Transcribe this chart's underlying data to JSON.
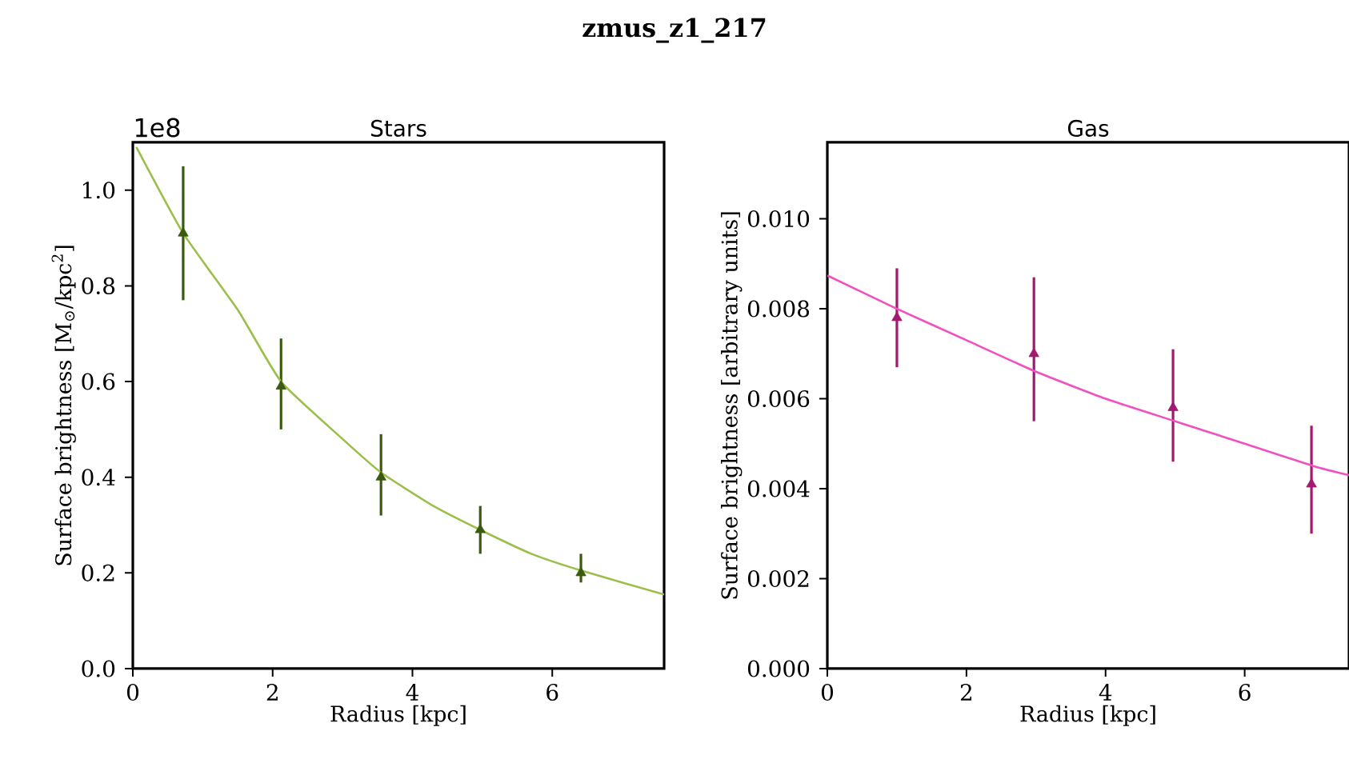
{
  "chart_data": [
    {
      "type": "scatter",
      "title": "Stars",
      "xlabel": "Radius [kpc]",
      "ylabel": "Surface brightness [M$_{⊙}$/kpc$^{2}$]",
      "annotations": [
        "zmus_z1_217",
        "1e8"
      ],
      "xlim": [
        0,
        7.6
      ],
      "ylim": [
        0,
        1.1
      ],
      "xticks": [
        0,
        2,
        4,
        6
      ],
      "yticks": [
        {
          "value": 0,
          "label": "0.0"
        },
        0.2,
        0.4,
        0.6,
        0.8,
        {
          "value": 1,
          "label": "1.0"
        }
      ],
      "series": [
        {
          "marker": "triangle",
          "color": "#3b5a0f",
          "x": [
            0.72,
            2.12,
            3.55,
            4.97,
            6.41
          ],
          "values": [
            0.91,
            0.59,
            0.4,
            0.29,
            0.2
          ],
          "errors": [
            [
              0.77,
              1.05
            ],
            [
              0.5,
              0.69
            ],
            [
              0.32,
              0.49
            ],
            [
              0.24,
              0.34
            ],
            [
              0.18,
              0.24
            ]
          ]
        },
        {
          "type": "line",
          "color": "#9bbf4a",
          "x": [
            0.05,
            0.72,
            1.5,
            2.12,
            3.0,
            3.55,
            4.3,
            4.97,
            5.7,
            6.41,
            7.6
          ],
          "values": [
            1.09,
            0.91,
            0.75,
            0.6,
            0.48,
            0.41,
            0.34,
            0.29,
            0.24,
            0.205,
            0.155
          ]
        }
      ]
    },
    {
      "type": "scatter",
      "title": "Gas",
      "xlabel": "Radius [kpc]",
      "ylabel": "Surface brightness [arbitrary units]",
      "xlim": [
        0,
        7.5
      ],
      "ylim": [
        0,
        0.0117
      ],
      "xticks": [
        0,
        2,
        4,
        6
      ],
      "yticks": [
        {
          "value": 0,
          "label": "0.000"
        },
        {
          "value": 0.002,
          "label": "0.002"
        },
        {
          "value": 0.004,
          "label": "0.004"
        },
        {
          "value": 0.006,
          "label": "0.006"
        },
        {
          "value": 0.008,
          "label": "0.008"
        },
        {
          "value": 0.01,
          "label": "0.010"
        }
      ],
      "series": [
        {
          "marker": "triangle",
          "color": "#a3196e",
          "x": [
            1.0,
            2.97,
            4.97,
            6.96
          ],
          "values": [
            0.0078,
            0.007,
            0.0058,
            0.0041
          ],
          "errors": [
            [
              0.0067,
              0.0089
            ],
            [
              0.0055,
              0.0087
            ],
            [
              0.0046,
              0.0071
            ],
            [
              0.003,
              0.0054
            ]
          ]
        },
        {
          "type": "line",
          "color": "#f050c0",
          "x": [
            0,
            1,
            2,
            3,
            4,
            5,
            6,
            7,
            7.5
          ],
          "values": [
            0.00874,
            0.008,
            0.0073,
            0.0066,
            0.006,
            0.0055,
            0.005,
            0.0045,
            0.0043
          ]
        }
      ]
    }
  ]
}
